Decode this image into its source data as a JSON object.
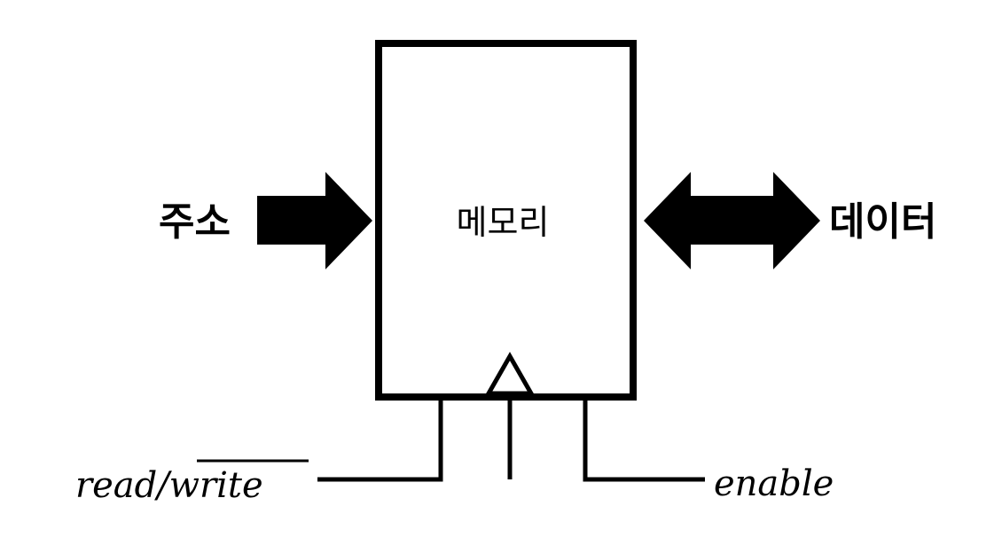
{
  "diagram": {
    "memory_label": "메모리",
    "address_label": "주소",
    "data_label": "데이터",
    "read_label": "read/",
    "write_label": "write",
    "enable_label": "enable"
  },
  "colors": {
    "stroke": "#000000",
    "background": "#ffffff"
  }
}
